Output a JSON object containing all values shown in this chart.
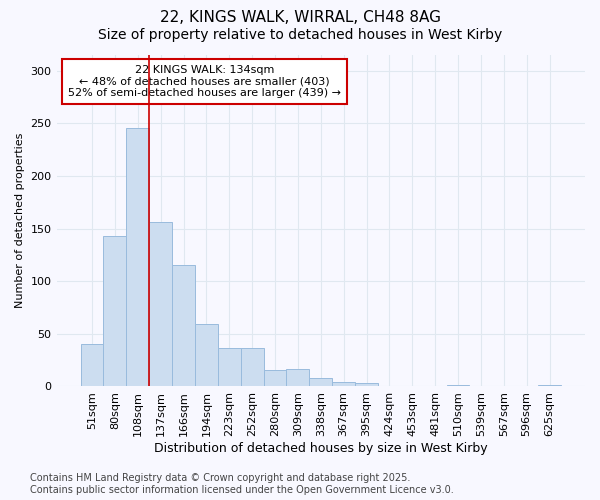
{
  "title_line1": "22, KINGS WALK, WIRRAL, CH48 8AG",
  "title_line2": "Size of property relative to detached houses in West Kirby",
  "xlabel": "Distribution of detached houses by size in West Kirby",
  "ylabel": "Number of detached properties",
  "categories": [
    "51sqm",
    "80sqm",
    "108sqm",
    "137sqm",
    "166sqm",
    "194sqm",
    "223sqm",
    "252sqm",
    "280sqm",
    "309sqm",
    "338sqm",
    "367sqm",
    "395sqm",
    "424sqm",
    "453sqm",
    "481sqm",
    "510sqm",
    "539sqm",
    "567sqm",
    "596sqm",
    "625sqm"
  ],
  "values": [
    40,
    143,
    246,
    156,
    115,
    59,
    37,
    37,
    16,
    17,
    8,
    4,
    3,
    0,
    0,
    0,
    1,
    0,
    0,
    0,
    1
  ],
  "bar_color": "#ccddf0",
  "bar_edge_color": "#99bbdd",
  "vline_color": "#cc0000",
  "vline_x": 2.5,
  "annotation_text": "22 KINGS WALK: 134sqm\n← 48% of detached houses are smaller (403)\n52% of semi-detached houses are larger (439) →",
  "annotation_box_color": "#ffffff",
  "annotation_box_edge": "#cc0000",
  "annotation_fontsize": 8,
  "footer_text": "Contains HM Land Registry data © Crown copyright and database right 2025.\nContains public sector information licensed under the Open Government Licence v3.0.",
  "bg_color": "#f8f8ff",
  "grid_color": "#e0e8f0",
  "title_fontsize": 11,
  "subtitle_fontsize": 10,
  "xlabel_fontsize": 9,
  "ylabel_fontsize": 8,
  "tick_fontsize": 8,
  "footer_fontsize": 7,
  "ylim": [
    0,
    315
  ]
}
